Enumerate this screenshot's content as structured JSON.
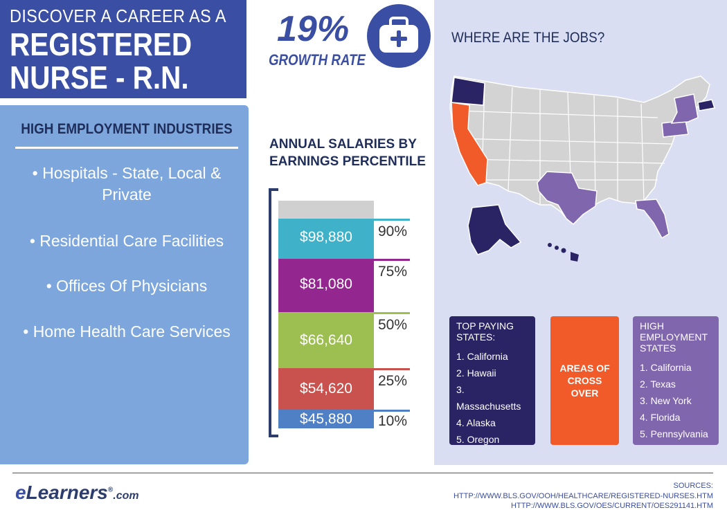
{
  "title": {
    "line1": "DISCOVER A CAREER AS A",
    "line2": "REGISTERED",
    "line3": "NURSE - R.N."
  },
  "growth": {
    "percent": "19%",
    "label": "GROWTH RATE",
    "icon": "medical-kit-icon"
  },
  "industries": {
    "heading": "HIGH EMPLOYMENT INDUSTRIES",
    "items": [
      "• Hospitals - State, Local & Private",
      "• Residential Care Facilities",
      "• Offices Of Physicians",
      "• Home Health Care Services"
    ]
  },
  "salaries": {
    "heading_line1": "ANNUAL SALARIES BY",
    "heading_line2": "EARNINGS PERCENTILE",
    "bars": [
      {
        "value": "$98,880",
        "percentile": "90%",
        "color": "#3fb1c9"
      },
      {
        "value": "$81,080",
        "percentile": "75%",
        "color": "#93278f"
      },
      {
        "value": "$66,640",
        "percentile": "50%",
        "color": "#9dbf52"
      },
      {
        "value": "$54,620",
        "percentile": "25%",
        "color": "#c9524e"
      },
      {
        "value": "$45,880",
        "percentile": "10%",
        "color": "#4f80c6"
      }
    ]
  },
  "jobs": {
    "heading": "WHERE ARE THE JOBS?",
    "top_paying": {
      "title": "TOP PAYING STATES:",
      "items": [
        "1. California",
        "2. Hawaii",
        "3. Massachusetts",
        "4. Alaska",
        "5. Oregon"
      ],
      "color": "#2b2464"
    },
    "cross_over": {
      "title": "AREAS OF CROSS OVER",
      "color": "#f15a29"
    },
    "high_employment": {
      "title": "HIGH EMPLOYMENT STATES",
      "items": [
        "1. California",
        "2. Texas",
        "3. New York",
        "4. Florida",
        "5. Pennsylvania"
      ],
      "color": "#8066ac"
    }
  },
  "footer": {
    "logo_e": "e",
    "logo_main": "Learners",
    "logo_reg": "®",
    "logo_com": ".com",
    "sources_label": "SOURCES:",
    "sources": [
      "HTTP://WWW.BLS.GOV/OOH/HEALTHCARE/REGISTERED-NURSES.HTM",
      "HTTP://WWW.BLS.GOV/OES/CURRENT/OES291141.HTM"
    ]
  }
}
